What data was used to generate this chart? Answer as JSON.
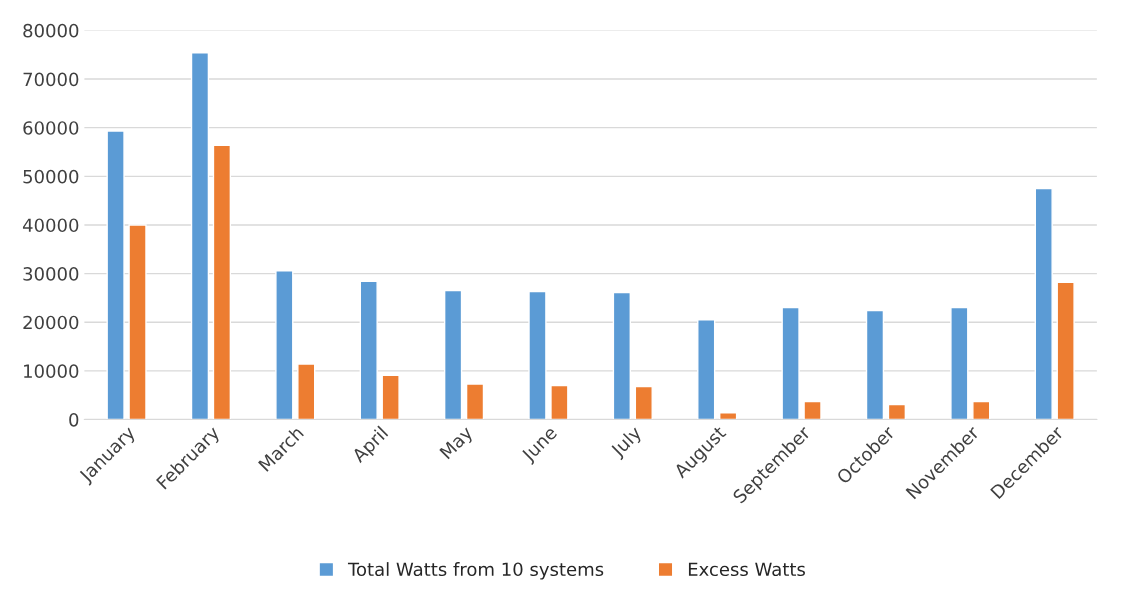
{
  "chart_data": {
    "type": "bar",
    "categories": [
      "January",
      "February",
      "March",
      "April",
      "May",
      "June",
      "July",
      "August",
      "September",
      "October",
      "November",
      "December"
    ],
    "series": [
      {
        "name": "Total Watts from 10 systems",
        "color": "#5b9bd5",
        "values": [
          59300,
          75400,
          30600,
          28400,
          26500,
          26300,
          26100,
          20500,
          23000,
          22400,
          23000,
          47500
        ]
      },
      {
        "name": "Excess Watts",
        "color": "#ed7d31",
        "values": [
          40000,
          56400,
          11400,
          9100,
          7300,
          7000,
          6800,
          1400,
          3700,
          3100,
          3700,
          28200
        ]
      }
    ],
    "ylim": [
      0,
      80000
    ],
    "yticks": [
      0,
      10000,
      20000,
      30000,
      40000,
      50000,
      60000,
      70000,
      80000
    ],
    "grid": "y",
    "legend": "bottom"
  }
}
